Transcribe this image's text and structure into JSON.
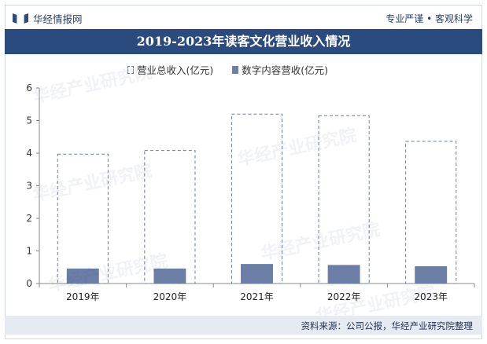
{
  "header": {
    "brand": "华经情报网",
    "slogan": "专业严谨 • 客观科学"
  },
  "title": "2019-2023年读客文化营业收入情况",
  "footer": {
    "source": "资料来源：公司公报，华经产业研究院整理"
  },
  "watermark": "华经产业研究院",
  "colors": {
    "title_bg": "#2b4b7f",
    "bar_fill": "#6b7fa6",
    "outline": "#6b7fa6",
    "footer_bg": "#e6ebf3"
  },
  "chart_data": {
    "type": "bar",
    "categories": [
      "2019年",
      "2020年",
      "2021年",
      "2022年",
      "2023年"
    ],
    "series": [
      {
        "name": "营业总收入(亿元)",
        "values": [
          3.97,
          4.08,
          5.2,
          5.15,
          4.36
        ],
        "style": "dashed-outline"
      },
      {
        "name": "数字内容营收(亿元)",
        "values": [
          0.46,
          0.46,
          0.6,
          0.57,
          0.53
        ],
        "style": "filled"
      }
    ],
    "yticks": [
      0,
      1,
      2,
      3,
      4,
      5,
      6
    ],
    "ylim": [
      0,
      6
    ],
    "grid": false,
    "legend": "top"
  }
}
